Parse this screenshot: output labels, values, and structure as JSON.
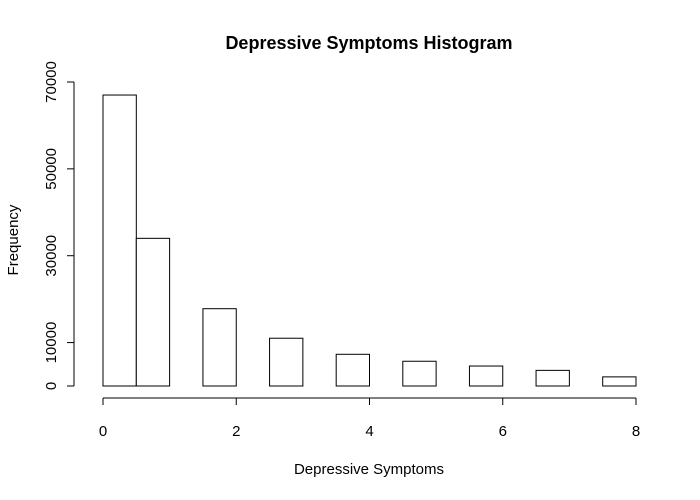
{
  "chart_data": {
    "type": "bar",
    "title": "Depressive Symptoms Histogram",
    "xlabel": "Depressive Symptoms",
    "ylabel": "Frequency",
    "bins": [
      {
        "start": 0.0,
        "end": 0.5,
        "value": 67000
      },
      {
        "start": 0.5,
        "end": 1.0,
        "value": 34000
      },
      {
        "start": 1.5,
        "end": 2.0,
        "value": 17800
      },
      {
        "start": 2.5,
        "end": 3.0,
        "value": 11000
      },
      {
        "start": 3.5,
        "end": 4.0,
        "value": 7300
      },
      {
        "start": 4.5,
        "end": 5.0,
        "value": 5700
      },
      {
        "start": 5.5,
        "end": 6.0,
        "value": 4600
      },
      {
        "start": 6.5,
        "end": 7.0,
        "value": 3600
      },
      {
        "start": 7.5,
        "end": 8.0,
        "value": 2100
      }
    ],
    "xlim": [
      0,
      8
    ],
    "ylim": [
      0,
      70000
    ],
    "x_ticks": [
      0,
      2,
      4,
      6,
      8
    ],
    "x_tick_labels": [
      "0",
      "2",
      "4",
      "6",
      "8"
    ],
    "y_ticks": [
      0,
      10000,
      30000,
      50000,
      70000
    ],
    "y_tick_labels": [
      "0",
      "10000",
      "30000",
      "50000",
      "70000"
    ],
    "grid": false,
    "legend": "none",
    "colors": {
      "bar_fill": "#ffffff",
      "bar_stroke": "#000000",
      "axis": "#000000"
    }
  }
}
